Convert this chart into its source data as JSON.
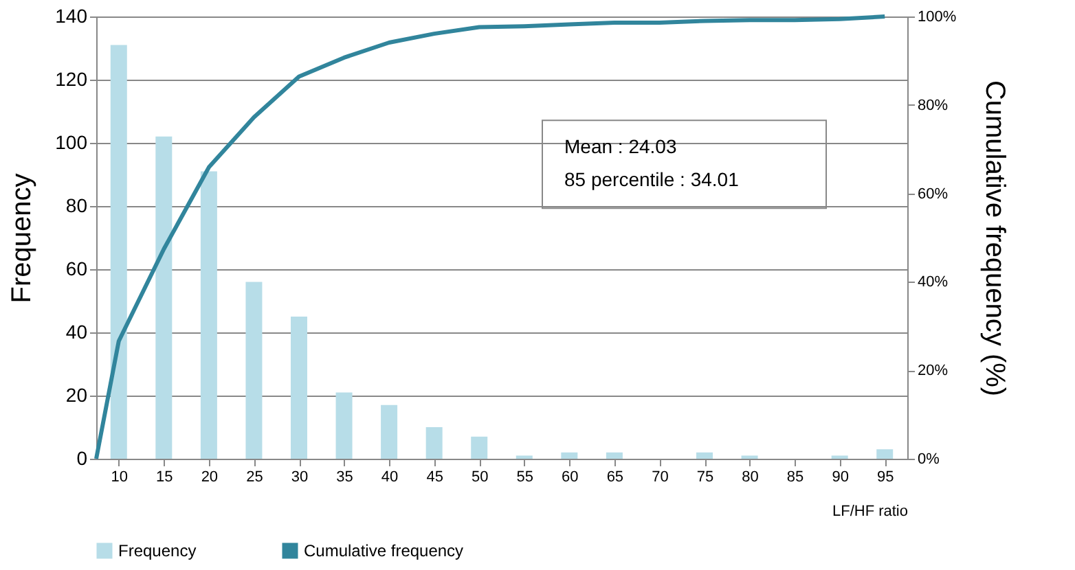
{
  "chart_data": {
    "type": "bar",
    "xlabel": "LF/HF ratio",
    "ylabel": "Frequency",
    "y2label": "Cumulative frequency (%)",
    "x": [
      10,
      15,
      20,
      25,
      30,
      35,
      40,
      45,
      50,
      55,
      60,
      65,
      70,
      75,
      80,
      85,
      90,
      95
    ],
    "xlim": [
      7.5,
      97.5
    ],
    "xticks": [
      10,
      15,
      20,
      25,
      30,
      35,
      40,
      45,
      50,
      55,
      60,
      65,
      70,
      75,
      80,
      85,
      90,
      95
    ],
    "ylim": [
      0,
      140
    ],
    "yticks": [
      0,
      20,
      40,
      60,
      80,
      100,
      120,
      140
    ],
    "y2lim": [
      0,
      100
    ],
    "y2ticks": [
      {
        "value": 0,
        "label": "0%"
      },
      {
        "value": 20,
        "label": "20%"
      },
      {
        "value": 40,
        "label": "40%"
      },
      {
        "value": 60,
        "label": "60%"
      },
      {
        "value": 80,
        "label": "80%"
      },
      {
        "value": 100,
        "label": "100%"
      }
    ],
    "series": [
      {
        "name": "Frequency",
        "color": "#b7dde8",
        "values": [
          131,
          102,
          91,
          56,
          45,
          21,
          17,
          10,
          7,
          1,
          2,
          2,
          0,
          2,
          1,
          0,
          1,
          3
        ]
      },
      {
        "name": "Cumulative frequency",
        "type": "line",
        "axis": "y2",
        "color": "#31859c",
        "x": [
          7.5,
          10,
          15,
          20,
          25,
          30,
          35,
          40,
          45,
          50,
          55,
          60,
          65,
          70,
          75,
          80,
          85,
          90,
          95
        ],
        "values": [
          0,
          26.6,
          47.4,
          65.9,
          77.2,
          86.4,
          90.7,
          94.1,
          96.1,
          97.6,
          97.8,
          98.2,
          98.6,
          98.6,
          99.0,
          99.2,
          99.2,
          99.4,
          100
        ]
      }
    ],
    "grid": "y",
    "legend": "bottom",
    "annotations": [
      "Mean  :  24.03",
      "85 percentile  : 34.01"
    ]
  }
}
